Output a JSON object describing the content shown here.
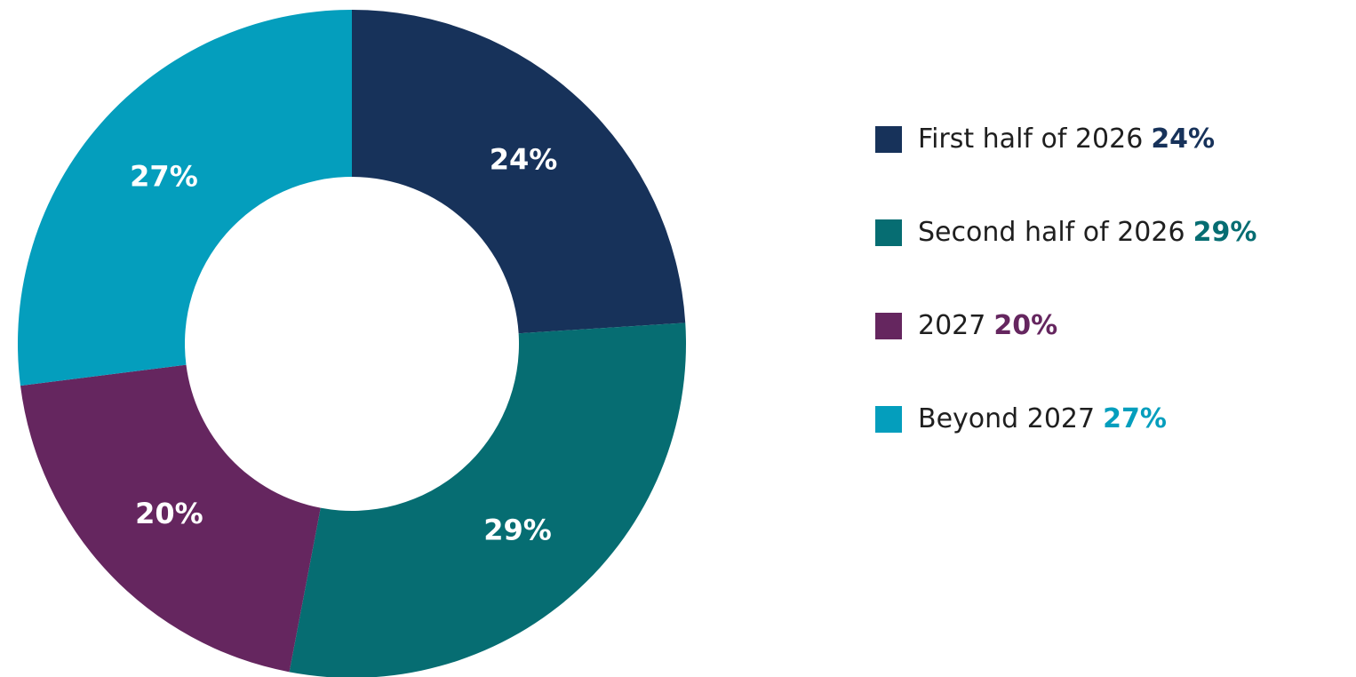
{
  "chart_data": {
    "type": "donut",
    "categories": [
      "First half of 2026",
      "Second half of 2026",
      "2027",
      "Beyond 2027"
    ],
    "values": [
      24,
      29,
      20,
      27
    ],
    "value_labels": [
      "24%",
      "29%",
      "20%",
      "27%"
    ],
    "colors": [
      "#17325a",
      "#066d72",
      "#65265f",
      "#049ebd"
    ],
    "legend": "right"
  }
}
